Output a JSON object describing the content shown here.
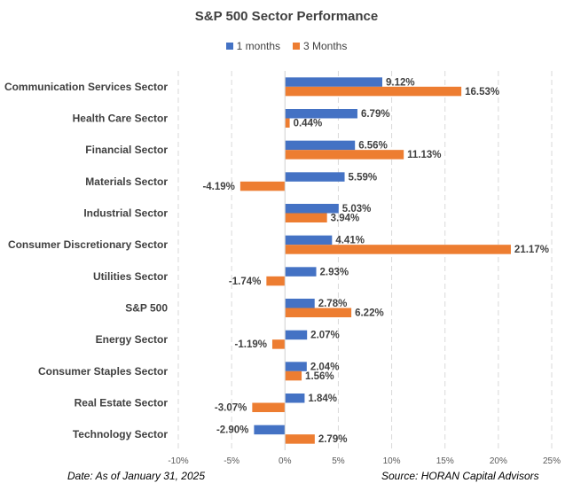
{
  "chart_data": {
    "type": "bar",
    "orientation": "horizontal",
    "title": "S&P 500 Sector Performance",
    "categories": [
      "Communication Services Sector",
      "Health Care Sector",
      "Financial Sector",
      "Materials Sector",
      "Industrial Sector",
      "Consumer Discretionary Sector",
      "Utilities Sector",
      "S&P 500",
      "Energy Sector",
      "Consumer Staples Sector",
      "Real Estate Sector",
      "Technology Sector"
    ],
    "series": [
      {
        "name": "1 months",
        "color": "#4472C4",
        "values": [
          9.12,
          6.79,
          6.56,
          5.59,
          5.03,
          4.41,
          2.93,
          2.78,
          2.07,
          2.04,
          1.84,
          -2.9
        ]
      },
      {
        "name": "3 Months",
        "color": "#ED7D31",
        "values": [
          16.53,
          0.44,
          11.13,
          -4.19,
          3.94,
          21.17,
          -1.74,
          6.22,
          -1.19,
          1.56,
          -3.07,
          2.79
        ]
      }
    ],
    "xlim": [
      -10,
      25
    ],
    "xticks": [
      -10,
      -5,
      0,
      5,
      10,
      15,
      20,
      25
    ],
    "tick_suffix": "%",
    "value_decimals": 2,
    "grid": true,
    "legend": "top-center"
  },
  "footer": {
    "date": "Date: As of January 31, 2025",
    "source": "Source: HORAN Capital Advisors"
  }
}
